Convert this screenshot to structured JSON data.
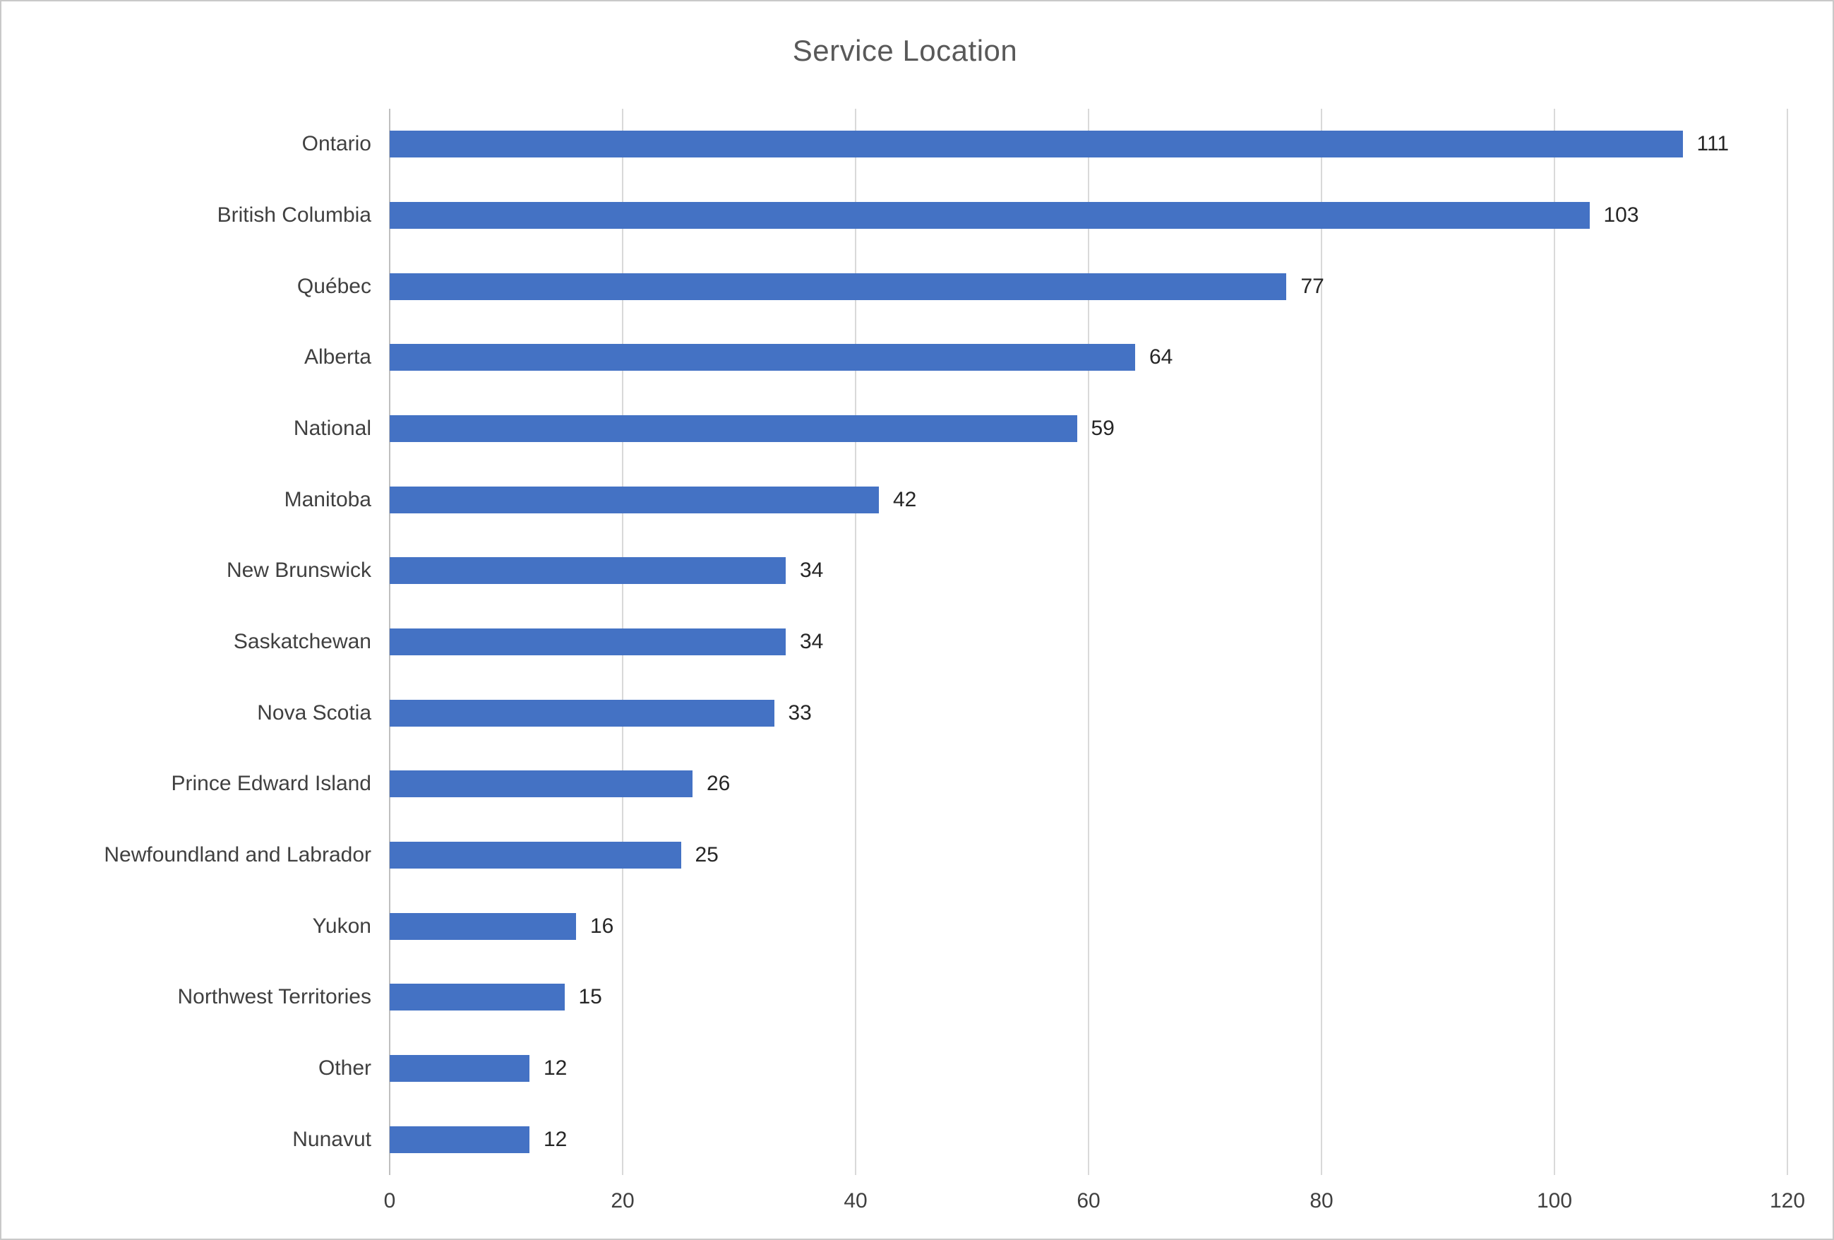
{
  "chart_data": {
    "type": "bar",
    "orientation": "horizontal",
    "title": "Service Location",
    "categories": [
      "Ontario",
      "British Columbia",
      "Québec",
      "Alberta",
      "National",
      "Manitoba",
      "New Brunswick",
      "Saskatchewan",
      "Nova Scotia",
      "Prince Edward Island",
      "Newfoundland and Labrador",
      "Yukon",
      "Northwest Territories",
      "Other",
      "Nunavut"
    ],
    "values": [
      111,
      103,
      77,
      64,
      59,
      42,
      34,
      34,
      33,
      26,
      25,
      16,
      15,
      12,
      12
    ],
    "xlabel": "",
    "ylabel": "",
    "xlim": [
      0,
      120
    ],
    "xticks": [
      0,
      20,
      40,
      60,
      80,
      100,
      120
    ],
    "grid": true,
    "legend": false,
    "data_labels": true,
    "bar_color": "#4472C4",
    "title_color": "#595959",
    "label_color": "#404040",
    "gridline_color": "#d9d9d9"
  }
}
